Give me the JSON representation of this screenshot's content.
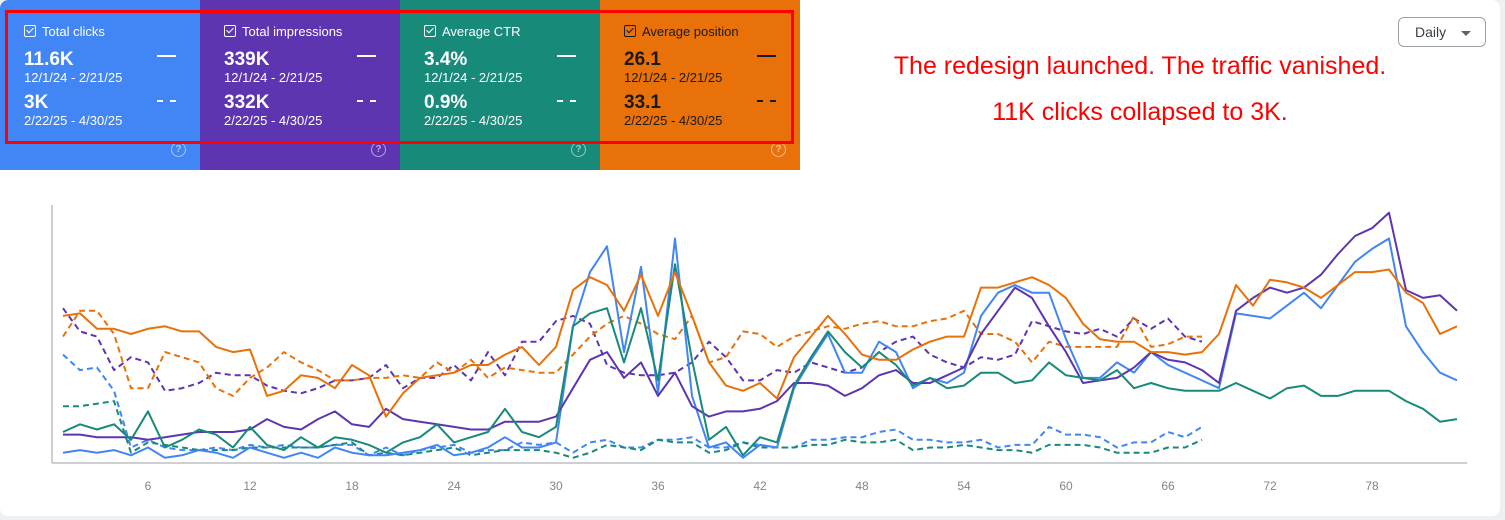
{
  "metrics": [
    {
      "label": "Total clicks",
      "value1": "11.6K",
      "range1": "12/1/24 - 2/21/25",
      "value2": "3K",
      "range2": "2/22/25 - 4/30/25",
      "color": "#4285f4",
      "checked": true
    },
    {
      "label": "Total impressions",
      "value1": "339K",
      "range1": "12/1/24 - 2/21/25",
      "value2": "332K",
      "range2": "2/22/25 - 4/30/25",
      "color": "#5e35b1",
      "checked": true
    },
    {
      "label": "Average CTR",
      "value1": "3.4%",
      "range1": "12/1/24 - 2/21/25",
      "value2": "0.9%",
      "range2": "2/22/25 - 4/30/25",
      "color": "#188a7a",
      "checked": true
    },
    {
      "label": "Average position",
      "value1": "26.1",
      "range1": "12/1/24 - 2/21/25",
      "value2": "33.1",
      "range2": "2/22/25 - 4/30/25",
      "color": "#e8710a",
      "checked": true
    }
  ],
  "help_icon": "?",
  "annotation": {
    "line1": "The redesign launched. The traffic vanished.",
    "line2": "11K clicks collapsed to 3K.",
    "color": "#ff0000"
  },
  "granularity": {
    "selected": "Daily"
  },
  "chart_data": {
    "type": "line",
    "title": "",
    "xlabel": "",
    "ylabel": "",
    "y_scale": "each metric normalized independently, no y-axis labels shown",
    "xlim": [
      1,
      83
    ],
    "x_ticks": [
      "6",
      "12",
      "18",
      "24",
      "30",
      "36",
      "42",
      "48",
      "54",
      "60",
      "66",
      "72",
      "78"
    ],
    "grid": false,
    "series": [
      {
        "name": "Total clicks",
        "period": "12/1/24 - 2/21/25",
        "style": "solid",
        "color": "#4285f4",
        "values": [
          4,
          5,
          4,
          5,
          3,
          6,
          2,
          3,
          5,
          4,
          2,
          6,
          4,
          2,
          4,
          2,
          6,
          4,
          3,
          3,
          4,
          5,
          7,
          3,
          4,
          6,
          10,
          6,
          6,
          8,
          53,
          74,
          84,
          43,
          76,
          27,
          87,
          26,
          6,
          8,
          2,
          7,
          6,
          29,
          40,
          50,
          35,
          35,
          47,
          43,
          29,
          33,
          31,
          35,
          57,
          66,
          69,
          66,
          66,
          48,
          33,
          33,
          39,
          35,
          43,
          38,
          35,
          32,
          29,
          58,
          57,
          56,
          61,
          66,
          60,
          69,
          78,
          83,
          87,
          53,
          43,
          35,
          32
        ]
      },
      {
        "name": "Total impressions",
        "period": "12/1/24 - 2/21/25",
        "style": "solid",
        "color": "#5e35b1",
        "values": [
          11,
          11,
          10,
          10,
          10,
          9,
          10,
          11,
          12,
          12,
          12,
          13,
          17,
          14,
          13,
          17,
          20,
          15,
          14,
          21,
          17,
          16,
          15,
          14,
          13,
          13,
          16,
          16,
          16,
          18,
          29,
          40,
          43,
          33,
          39,
          26,
          35,
          22,
          18,
          20,
          20,
          21,
          24,
          31,
          31,
          30,
          26,
          29,
          34,
          36,
          31,
          31,
          34,
          37,
          50,
          59,
          68,
          64,
          53,
          43,
          31,
          32,
          33,
          37,
          43,
          40,
          39,
          36,
          31,
          59,
          64,
          68,
          66,
          68,
          73,
          81,
          88,
          91,
          97,
          67,
          64,
          65,
          59
        ]
      },
      {
        "name": "Average CTR",
        "period": "12/1/24 - 2/21/25",
        "style": "solid",
        "color": "#188a7a",
        "values": [
          12,
          15,
          13,
          15,
          9,
          20,
          6,
          9,
          13,
          11,
          6,
          14,
          7,
          5,
          10,
          6,
          10,
          9,
          7,
          4,
          8,
          10,
          15,
          8,
          10,
          12,
          21,
          12,
          10,
          14,
          53,
          58,
          60,
          39,
          60,
          32,
          77,
          40,
          9,
          14,
          3,
          10,
          8,
          30,
          41,
          51,
          43,
          37,
          43,
          38,
          30,
          33,
          29,
          30,
          35,
          35,
          31,
          32,
          39,
          34,
          33,
          32,
          36,
          29,
          31,
          29,
          28,
          28,
          28,
          31,
          28,
          25,
          29,
          30,
          26,
          26,
          28,
          28,
          28,
          24,
          21,
          16,
          17
        ]
      },
      {
        "name": "Average position",
        "period": "12/1/24 - 2/21/25",
        "style": "solid",
        "color": "#e8710a",
        "values": [
          57,
          58,
          52,
          52,
          50,
          52,
          53,
          51,
          51,
          45,
          43,
          44,
          26,
          28,
          34,
          33,
          29,
          38,
          34,
          18,
          27,
          33,
          34,
          35,
          38,
          38,
          42,
          45,
          38,
          45,
          67,
          72,
          69,
          59,
          73,
          57,
          74,
          57,
          39,
          30,
          28,
          31,
          25,
          41,
          49,
          57,
          50,
          42,
          40,
          40,
          44,
          47,
          49,
          49,
          68,
          68,
          70,
          72,
          69,
          64,
          54,
          48,
          47,
          47,
          43,
          43,
          42,
          43,
          50,
          69,
          61,
          71,
          70,
          68,
          64,
          69,
          74,
          74,
          75,
          66,
          62,
          50,
          53
        ]
      },
      {
        "name": "Total clicks",
        "period": "2/22/25 - 4/30/25",
        "style": "dashed",
        "color": "#4285f4",
        "values": [
          42,
          36,
          37,
          28,
          6,
          9,
          6,
          5,
          5,
          6,
          5,
          7,
          6,
          7,
          6,
          6,
          7,
          7,
          3,
          6,
          3,
          5,
          6,
          7,
          4,
          5,
          5,
          8,
          7,
          8,
          4,
          8,
          9,
          6,
          6,
          9,
          9,
          10,
          6,
          6,
          8,
          7,
          6,
          6,
          9,
          9,
          10,
          10,
          12,
          13,
          9,
          9,
          8,
          8,
          9,
          6,
          7,
          7,
          14,
          11,
          11,
          10,
          6,
          8,
          8,
          12,
          10,
          14
        ]
      },
      {
        "name": "Total impressions",
        "period": "2/22/25 - 4/30/25",
        "style": "dashed",
        "color": "#5e35b1",
        "values": [
          60,
          51,
          49,
          36,
          41,
          39,
          28,
          29,
          31,
          35,
          34,
          34,
          30,
          28,
          27,
          29,
          32,
          32,
          33,
          38,
          29,
          33,
          33,
          38,
          32,
          43,
          34,
          47,
          47,
          55,
          57,
          54,
          38,
          35,
          34,
          34,
          35,
          39,
          47,
          41,
          32,
          32,
          36,
          35,
          39,
          37,
          35,
          37,
          43,
          47,
          49,
          42,
          39,
          37,
          41,
          40,
          42,
          55,
          53,
          51,
          50,
          52,
          49,
          56,
          52,
          56,
          49,
          47
        ]
      },
      {
        "name": "Average CTR",
        "period": "2/22/25 - 4/30/25",
        "style": "dashed",
        "color": "#188a7a",
        "values": [
          22,
          22,
          23,
          24,
          4,
          8,
          7,
          6,
          5,
          5,
          5,
          6,
          6,
          6,
          6,
          6,
          7,
          8,
          3,
          4,
          3,
          4,
          5,
          6,
          3,
          4,
          5,
          5,
          5,
          4,
          2,
          4,
          7,
          6,
          5,
          9,
          8,
          8,
          4,
          5,
          8,
          6,
          6,
          6,
          7,
          7,
          9,
          8,
          8,
          9,
          5,
          6,
          6,
          7,
          6,
          5,
          5,
          4,
          7,
          7,
          7,
          6,
          4,
          4,
          4,
          6,
          6,
          9
        ]
      },
      {
        "name": "Average position",
        "period": "2/22/25 - 4/30/25",
        "style": "dashed",
        "color": "#e8710a",
        "values": [
          49,
          59,
          59,
          50,
          29,
          29,
          43,
          41,
          39,
          29,
          26,
          33,
          37,
          43,
          39,
          36,
          32,
          32,
          33,
          33,
          34,
          33,
          39,
          35,
          40,
          33,
          37,
          36,
          35,
          35,
          42,
          49,
          54,
          57,
          54,
          50,
          48,
          57,
          39,
          41,
          51,
          50,
          45,
          49,
          51,
          53,
          52,
          54,
          55,
          53,
          53,
          55,
          56,
          59,
          50,
          50,
          47,
          39,
          47,
          45,
          45,
          45,
          45,
          57,
          45,
          46,
          49,
          49
        ]
      }
    ]
  }
}
